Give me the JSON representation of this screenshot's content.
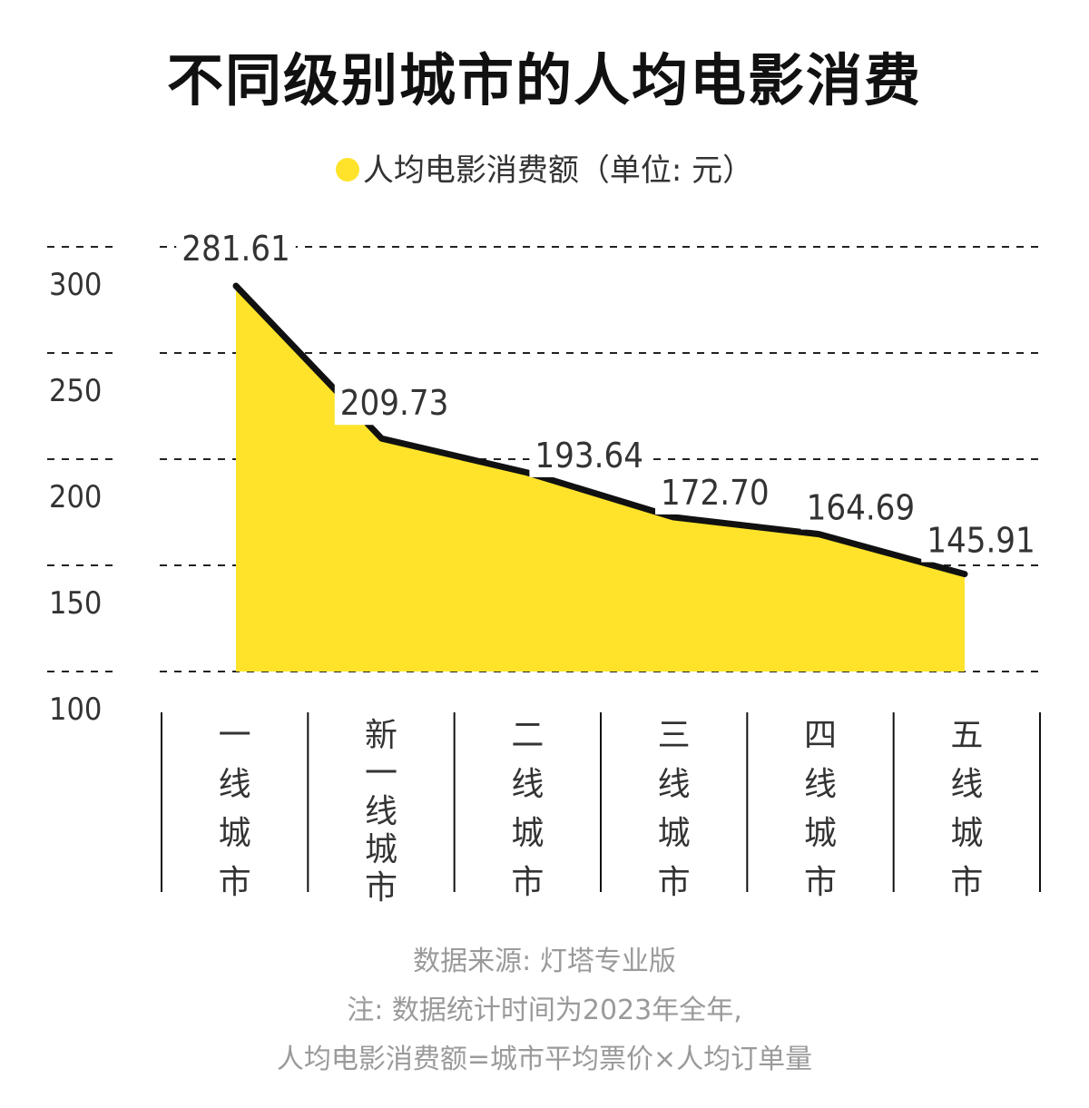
{
  "title": "不同级别城市的人均电影消费",
  "legend": {
    "label": "人均电影消费额（单位: 元）",
    "color": "#FFE32A"
  },
  "colors": {
    "fill": "#FFE32A",
    "line": "#111111",
    "grid": "#222222",
    "text": "#333333"
  },
  "chart_data": {
    "type": "area",
    "title": "不同级别城市的人均电影消费",
    "categories": [
      "一线城市",
      "新一线城市",
      "二线城市",
      "三线城市",
      "四线城市",
      "五线城市"
    ],
    "series": [
      {
        "name": "人均电影消费额（单位: 元）",
        "values": [
          281.61,
          209.73,
          193.64,
          172.7,
          164.69,
          145.91
        ]
      }
    ],
    "data_labels": [
      "281.61",
      "209.73",
      "193.64",
      "172.70",
      "164.69",
      "145.91"
    ],
    "yticks": [
      "300",
      "250",
      "200",
      "150",
      "100"
    ],
    "ylim": [
      100,
      300
    ],
    "grid": true,
    "legend_position": "top"
  },
  "notes": {
    "source": "数据来源: 灯塔专业版",
    "note1": "注: 数据统计时间为2023年全年,",
    "note2": "人均电影消费额=城市平均票价×人均订单量"
  }
}
